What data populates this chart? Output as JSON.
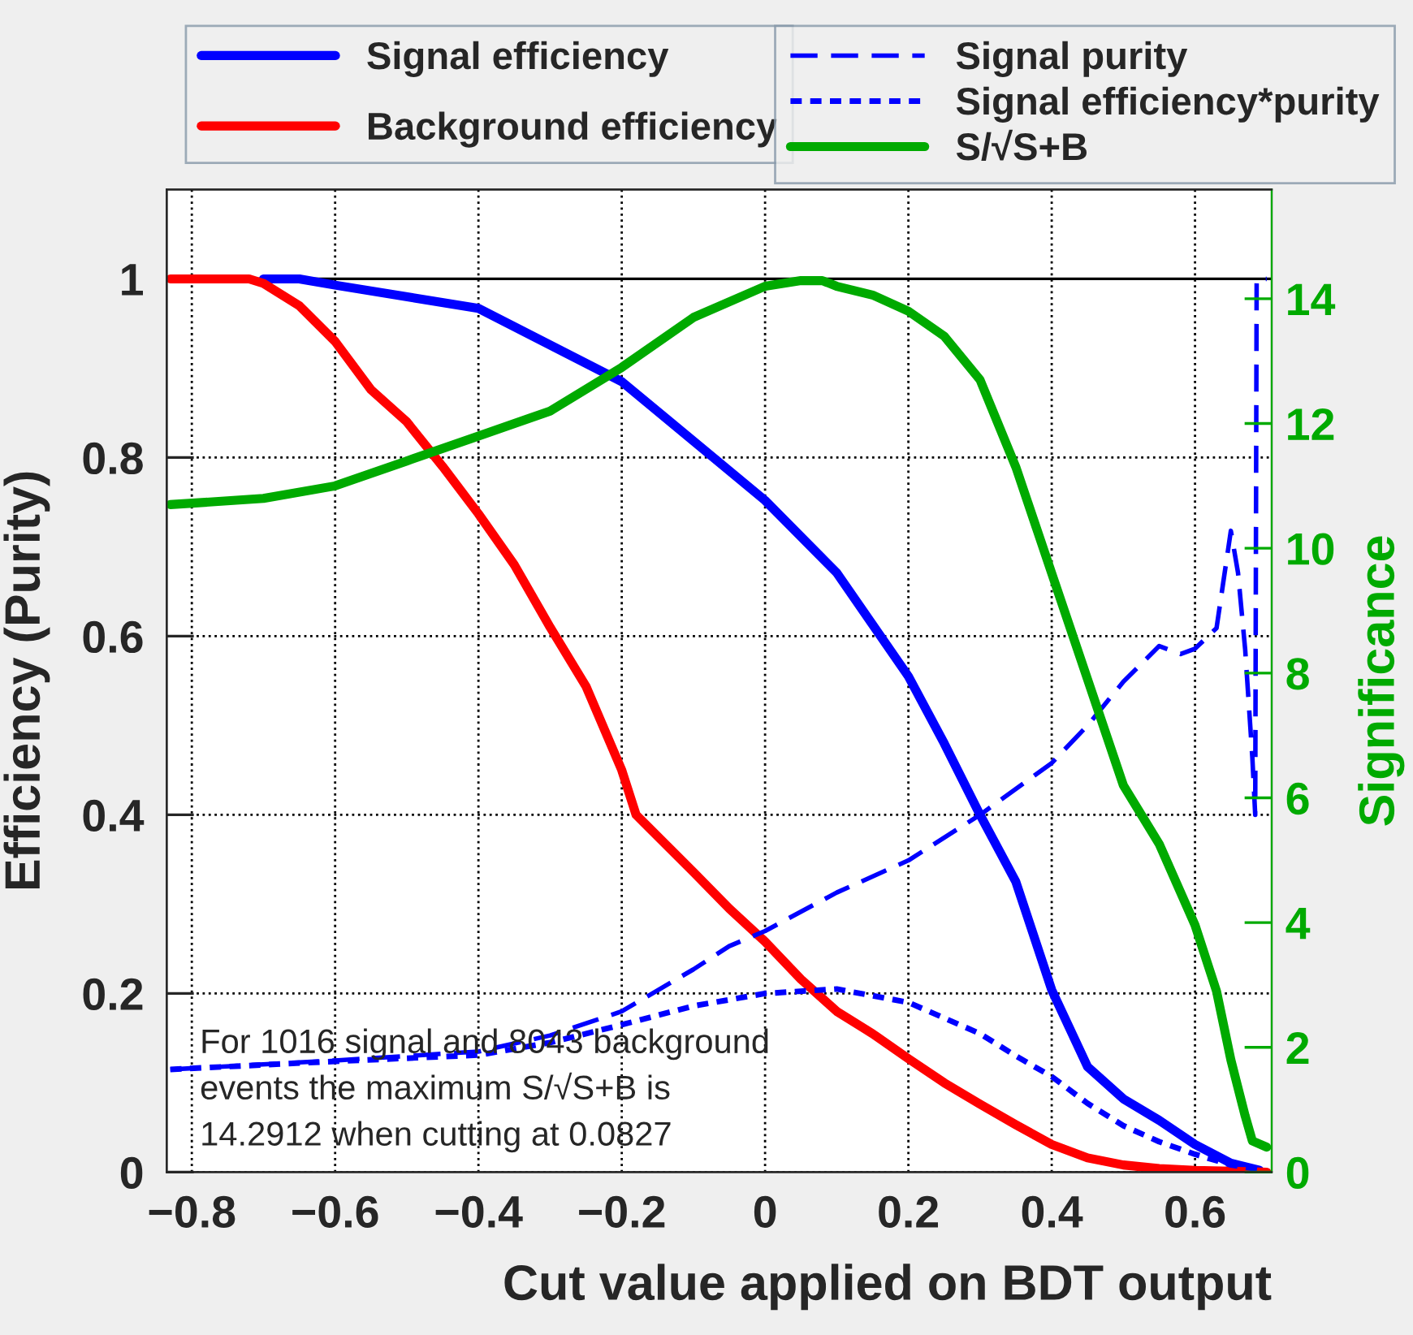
{
  "chart_data": {
    "type": "line",
    "xlabel": "Cut value applied on BDT output",
    "ylabel": "Efficiency (Purity)",
    "y2label": "Significance",
    "xlim": [
      -0.835,
      0.707
    ],
    "xticks": [
      {
        "value": -0.8,
        "label": "−0.8"
      },
      {
        "value": -0.6,
        "label": "−0.6"
      },
      {
        "value": -0.4,
        "label": "−0.4"
      },
      {
        "value": -0.2,
        "label": "−0.2"
      },
      0,
      0.2,
      0.4,
      0.6
    ],
    "ylim": [
      0,
      1.1
    ],
    "yticks": [
      0,
      0.2,
      0.4,
      0.6,
      0.8,
      1
    ],
    "y2lim": [
      0,
      15.75
    ],
    "y2ticks": [
      0,
      2,
      4,
      6,
      8,
      10,
      12,
      14
    ],
    "grid": true,
    "legend": "top",
    "ref_lines": [
      {
        "axis": "y",
        "value": 1,
        "color": "#000000",
        "line_style": "solid"
      }
    ],
    "annotations": [
      "For 1016 signal and 8043 background\nevents the maximum S/√S+B is\n14.2912 when cutting at 0.0827"
    ],
    "series": [
      {
        "name": "Signal efficiency",
        "color": "#0000ff",
        "line_style": "solid",
        "x": [
          -0.7,
          -0.65,
          -0.6,
          -0.4,
          -0.2,
          0,
          0.1,
          0.2,
          0.25,
          0.3,
          0.35,
          0.4,
          0.45,
          0.5,
          0.55,
          0.6,
          0.65,
          0.69
        ],
        "values": [
          1.0,
          1.0,
          0.993,
          0.967,
          0.885,
          0.752,
          0.671,
          0.555,
          0.48,
          0.4,
          0.325,
          0.204,
          0.118,
          0.082,
          0.058,
          0.031,
          0.01,
          0.002
        ]
      },
      {
        "name": "Background efficiency",
        "color": "#ff0000",
        "line_style": "solid",
        "x": [
          -0.83,
          -0.72,
          -0.7,
          -0.65,
          -0.6,
          -0.55,
          -0.5,
          -0.45,
          -0.4,
          -0.35,
          -0.3,
          -0.25,
          -0.2,
          -0.18,
          -0.1,
          -0.05,
          0,
          0.05,
          0.1,
          0.15,
          0.2,
          0.25,
          0.3,
          0.35,
          0.4,
          0.45,
          0.5,
          0.55,
          0.6,
          0.7
        ],
        "values": [
          1.0,
          1.0,
          0.995,
          0.97,
          0.93,
          0.876,
          0.84,
          0.79,
          0.737,
          0.68,
          0.61,
          0.544,
          0.45,
          0.4,
          0.336,
          0.295,
          0.258,
          0.216,
          0.18,
          0.155,
          0.127,
          0.1,
          0.076,
          0.053,
          0.031,
          0.016,
          0.008,
          0.004,
          0.002,
          0.0
        ]
      },
      {
        "name": "Signal purity",
        "color": "#0000ff",
        "line_style": "dashed",
        "x": [
          -0.83,
          -0.6,
          -0.4,
          -0.3,
          -0.2,
          -0.1,
          -0.05,
          0,
          0.1,
          0.2,
          0.3,
          0.4,
          0.45,
          0.5,
          0.55,
          0.58,
          0.6,
          0.63,
          0.65,
          0.66,
          0.67,
          0.68,
          0.684,
          0.686,
          0.7
        ],
        "values": [
          0.115,
          0.125,
          0.135,
          0.153,
          0.18,
          0.227,
          0.253,
          0.27,
          0.313,
          0.349,
          0.4,
          0.458,
          0.5,
          0.549,
          0.589,
          0.58,
          0.586,
          0.609,
          0.718,
          0.671,
          0.585,
          0.464,
          0.4,
          1.0,
          1.0
        ]
      },
      {
        "name": "Signal efficiency*purity",
        "color": "#0000ff",
        "line_style": "dotted",
        "x": [
          -0.83,
          -0.6,
          -0.4,
          -0.3,
          -0.2,
          -0.1,
          0,
          0.1,
          0.2,
          0.3,
          0.35,
          0.4,
          0.45,
          0.5,
          0.55,
          0.6,
          0.65,
          0.69
        ],
        "values": [
          0.115,
          0.124,
          0.131,
          0.145,
          0.165,
          0.186,
          0.2,
          0.205,
          0.19,
          0.155,
          0.13,
          0.107,
          0.077,
          0.052,
          0.034,
          0.02,
          0.008,
          0.003
        ]
      },
      {
        "name": "S/√S+B",
        "color": "#00aa00",
        "line_style": "solid",
        "axis": "y2",
        "x": [
          -0.83,
          -0.7,
          -0.6,
          -0.5,
          -0.4,
          -0.3,
          -0.2,
          -0.1,
          0,
          0.05,
          0.08,
          0.1,
          0.15,
          0.2,
          0.25,
          0.3,
          0.35,
          0.4,
          0.45,
          0.5,
          0.55,
          0.6,
          0.63,
          0.65,
          0.67,
          0.68,
          0.7
        ],
        "values": [
          10.7,
          10.8,
          11.0,
          11.4,
          11.8,
          12.2,
          12.9,
          13.7,
          14.2,
          14.29,
          14.29,
          14.2,
          14.06,
          13.8,
          13.4,
          12.7,
          11.3,
          9.6,
          7.9,
          6.2,
          5.26,
          3.96,
          2.9,
          1.8,
          0.9,
          0.5,
          0.4
        ]
      }
    ]
  }
}
